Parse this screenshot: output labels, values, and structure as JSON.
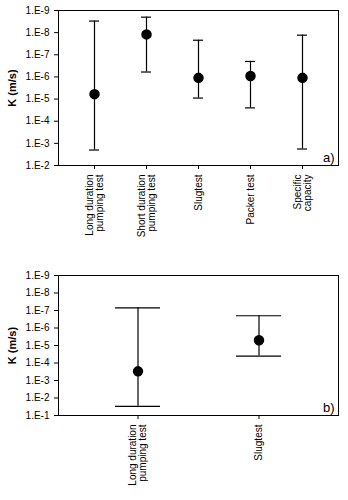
{
  "chart_data": [
    {
      "type": "scatter",
      "annotation": "a)",
      "y_label": "K (m/s)",
      "log": "y",
      "grid": false,
      "categories": [
        "Long duration pumping test",
        "Short duration pumping test",
        "Slugtest",
        "Packer test",
        "Specific capacity"
      ],
      "series": [
        {
          "color": "#000000",
          "marker": "circle",
          "values": [
            6e-06,
            1.2e-08,
            1.1e-06,
            9e-07,
            1.1e-06
          ],
          "error_min": [
            3e-09,
            2e-09,
            2.2e-08,
            2e-07,
            1.3e-08
          ],
          "error_max": [
            0.002,
            6e-07,
            9e-06,
            2.5e-05,
            0.0018
          ]
        }
      ],
      "ylim": [
        0.01,
        1e-09
      ],
      "yticks": [
        {
          "value": 1e-09,
          "label": "1.E-9"
        },
        {
          "value": 1e-08,
          "label": "1.E-8"
        },
        {
          "value": 1e-07,
          "label": "1.E-7"
        },
        {
          "value": 1e-06,
          "label": "1.E-6"
        },
        {
          "value": 1e-05,
          "label": "1.E-5"
        },
        {
          "value": 0.0001,
          "label": "1.E-4"
        },
        {
          "value": 0.001,
          "label": "1.E-3"
        },
        {
          "value": 0.01,
          "label": "1.E-2"
        }
      ]
    },
    {
      "type": "scatter",
      "annotation": "b)",
      "y_label": "K (m/s)",
      "log": "y",
      "grid": false,
      "categories": [
        "Long duration pumping test",
        "Slugtest"
      ],
      "series": [
        {
          "color": "#000000",
          "marker": "circle",
          "values": [
            0.0003,
            5e-06
          ],
          "error_min": [
            7e-08,
            2e-07
          ],
          "error_max": [
            0.03,
            4e-05
          ]
        }
      ],
      "ylim": [
        0.1,
        1e-09
      ],
      "yticks": [
        {
          "value": 1e-09,
          "label": "1.E-9"
        },
        {
          "value": 1e-08,
          "label": "1.E-8"
        },
        {
          "value": 1e-07,
          "label": "1.E-7"
        },
        {
          "value": 1e-06,
          "label": "1.E-6"
        },
        {
          "value": 1e-05,
          "label": "1.E-5"
        },
        {
          "value": 0.0001,
          "label": "1.E-4"
        },
        {
          "value": 0.001,
          "label": "1.E-3"
        },
        {
          "value": 0.01,
          "label": "1.E-2"
        },
        {
          "value": 0.1,
          "label": "1.E-1"
        }
      ]
    }
  ]
}
